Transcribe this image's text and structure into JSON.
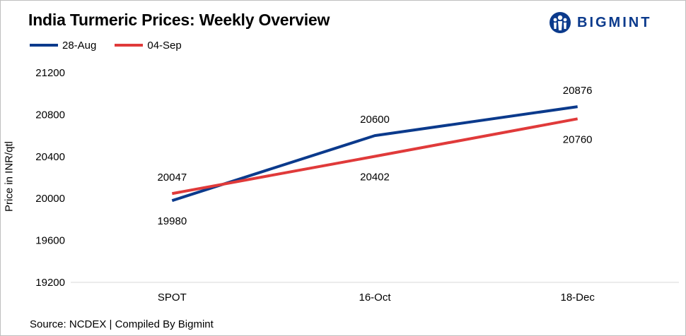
{
  "header": {
    "title": "India Turmeric Prices: Weekly Overview",
    "logo_text": "BIGMINT"
  },
  "footer": {
    "source": "Source: NCDEX  | Compiled  By Bigmint"
  },
  "colors": {
    "series_1": "#0b3a8c",
    "series_2": "#e03a3a",
    "logo": "#0b3a8c"
  },
  "icons": {
    "logo": "bigmint-logo-icon"
  },
  "chart_data": {
    "type": "line",
    "title": "India Turmeric Prices: Weekly Overview",
    "ylabel": "Price in INR/qtl",
    "xlabel": "",
    "categories": [
      "SPOT",
      "16-Oct",
      "18-Dec"
    ],
    "series": [
      {
        "name": "28-Aug",
        "values": [
          19980,
          20600,
          20876
        ]
      },
      {
        "name": "04-Sep",
        "values": [
          20047,
          20402,
          20760
        ]
      }
    ],
    "ylim": [
      19200,
      21200
    ],
    "yticks": [
      19200,
      19600,
      20000,
      20400,
      20800,
      21200
    ],
    "grid": false,
    "legend": "top-left",
    "data_labels": true
  }
}
